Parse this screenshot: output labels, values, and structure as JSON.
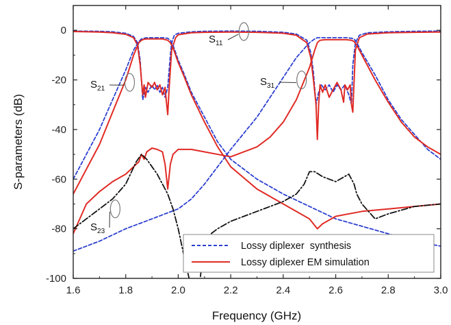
{
  "colors": {
    "synthesis": "#2b3fd1",
    "em_simulation": "#e02a24",
    "s23_curve": "#111111",
    "axis": "#222222",
    "annotation_ellipse": "#777777"
  },
  "chart_data": {
    "type": "line",
    "xlabel": "Frequency (GHz)",
    "ylabel": "S-parameters (dB)",
    "xlim": [
      1.6,
      3.0
    ],
    "ylim": [
      -100,
      10
    ],
    "xticks": [
      "1.6",
      "1.8",
      "2.0",
      "2.2",
      "2.4",
      "2.6",
      "2.8",
      "3.0"
    ],
    "yticks": [
      "0",
      "-20",
      "-40",
      "-60",
      "-80",
      "-100"
    ],
    "grid": false,
    "legend": {
      "placement": "bottom-right",
      "entries": [
        {
          "label": "Lossy diplexer  synthesis",
          "style": "dashed",
          "color": "#2b3fd1"
        },
        {
          "label": "Lossy diplexer EM simulation",
          "style": "solid",
          "color": "#e02a24"
        }
      ]
    },
    "annotations": [
      {
        "main": "S",
        "sub": "11",
        "at": [
          2.25,
          -0.5
        ]
      },
      {
        "main": "S",
        "sub": "21",
        "at": [
          1.815,
          -21
        ]
      },
      {
        "main": "S",
        "sub": "31",
        "at": [
          2.47,
          -20
        ]
      },
      {
        "main": "S",
        "sub": "23",
        "at": [
          1.76,
          -72
        ]
      }
    ],
    "series": [
      {
        "id": "s11-syn",
        "style": "dashed",
        "color": "#2b3fd1",
        "x": [
          1.6,
          1.7,
          1.75,
          1.8,
          1.83,
          1.845,
          1.855,
          1.865,
          1.875,
          1.885,
          1.9,
          1.91,
          1.92,
          1.93,
          1.94,
          1.95,
          1.96,
          1.97,
          1.975,
          1.985,
          2.0,
          2.05,
          2.1,
          2.2,
          2.3,
          2.4,
          2.45,
          2.49,
          2.505,
          2.515,
          2.525,
          2.535,
          2.545,
          2.56,
          2.575,
          2.59,
          2.605,
          2.62,
          2.635,
          2.65,
          2.66,
          2.665,
          2.675,
          2.69,
          2.72,
          2.8,
          2.9,
          3.0
        ],
        "y": [
          -0.3,
          -0.4,
          -0.6,
          -1.2,
          -2.5,
          -5,
          -12,
          -28,
          -23,
          -25,
          -22,
          -24,
          -22,
          -25,
          -23,
          -27,
          -23,
          -10,
          -5,
          -2,
          -1.2,
          -0.6,
          -0.4,
          -0.3,
          -0.4,
          -0.8,
          -1.5,
          -4,
          -9,
          -17,
          -30,
          -25,
          -22,
          -24,
          -22,
          -25,
          -22,
          -24,
          -22,
          -26,
          -30,
          -14,
          -5,
          -2,
          -1,
          -0.6,
          -0.4,
          -0.3
        ]
      },
      {
        "id": "s11-em",
        "style": "solid",
        "color": "#e02a24",
        "x": [
          1.6,
          1.7,
          1.75,
          1.8,
          1.83,
          1.845,
          1.855,
          1.865,
          1.87,
          1.875,
          1.885,
          1.9,
          1.91,
          1.92,
          1.93,
          1.94,
          1.95,
          1.955,
          1.96,
          1.965,
          1.975,
          1.99,
          2.0,
          2.05,
          2.1,
          2.2,
          2.3,
          2.4,
          2.45,
          2.49,
          2.505,
          2.515,
          2.525,
          2.53,
          2.535,
          2.54,
          2.55,
          2.56,
          2.575,
          2.59,
          2.605,
          2.62,
          2.63,
          2.635,
          2.645,
          2.655,
          2.66,
          2.665,
          2.675,
          2.69,
          2.72,
          2.8,
          2.9,
          3.0
        ],
        "y": [
          -0.5,
          -0.7,
          -1,
          -1.6,
          -3,
          -6,
          -14,
          -26,
          -22,
          -27,
          -21,
          -23,
          -21,
          -24,
          -22,
          -26,
          -23,
          -29,
          -34,
          -24,
          -8,
          -3,
          -1.8,
          -1,
          -0.8,
          -0.7,
          -0.8,
          -1.2,
          -2,
          -5,
          -11,
          -20,
          -30,
          -44,
          -30,
          -22,
          -25,
          -22,
          -27,
          -24,
          -21,
          -24,
          -29,
          -22,
          -24,
          -22,
          -30,
          -33,
          -8,
          -3,
          -1.5,
          -1,
          -0.8,
          -0.7
        ]
      },
      {
        "id": "s21-syn",
        "style": "dashed",
        "color": "#2b3fd1",
        "x": [
          1.6,
          1.65,
          1.7,
          1.75,
          1.8,
          1.83,
          1.85,
          1.86,
          1.87,
          1.88,
          1.9,
          1.92,
          1.94,
          1.96,
          1.97,
          1.98,
          1.99,
          2.0,
          2.02,
          2.05,
          2.1,
          2.15,
          2.2,
          2.3,
          2.4,
          2.5,
          2.6,
          2.7,
          2.8,
          2.9,
          3.0
        ],
        "y": [
          -60,
          -50,
          -40,
          -28,
          -16,
          -8,
          -4.5,
          -3.5,
          -3.2,
          -3,
          -3,
          -3,
          -3,
          -3.2,
          -4,
          -6,
          -9,
          -12,
          -17,
          -25,
          -35,
          -45,
          -52,
          -60,
          -66,
          -71,
          -76,
          -79,
          -82,
          -85,
          -87
        ]
      },
      {
        "id": "s21-em",
        "style": "solid",
        "color": "#e02a24",
        "x": [
          1.6,
          1.65,
          1.7,
          1.75,
          1.8,
          1.83,
          1.85,
          1.86,
          1.87,
          1.88,
          1.9,
          1.92,
          1.94,
          1.96,
          1.97,
          1.98,
          1.99,
          2.0,
          2.02,
          2.05,
          2.1,
          2.15,
          2.2,
          2.3,
          2.4,
          2.5,
          2.53,
          2.55,
          2.6,
          2.7,
          2.8,
          2.9,
          3.0
        ],
        "y": [
          -66,
          -56,
          -46,
          -33,
          -20,
          -10,
          -5,
          -4,
          -3.6,
          -3.5,
          -3.5,
          -3.5,
          -3.5,
          -4,
          -5,
          -7,
          -10,
          -13,
          -18,
          -26,
          -37,
          -47,
          -55,
          -64,
          -70,
          -76,
          -80,
          -78,
          -75,
          -73,
          -72,
          -71,
          -70
        ]
      },
      {
        "id": "s31-syn",
        "style": "dashed",
        "color": "#2b3fd1",
        "x": [
          1.6,
          1.7,
          1.8,
          1.9,
          1.95,
          2.0,
          2.05,
          2.1,
          2.2,
          2.3,
          2.35,
          2.4,
          2.45,
          2.5,
          2.52,
          2.53,
          2.54,
          2.56,
          2.6,
          2.64,
          2.66,
          2.67,
          2.68,
          2.7,
          2.75,
          2.8,
          2.85,
          2.9,
          2.95,
          3.0
        ],
        "y": [
          -89,
          -85,
          -80,
          -76,
          -74,
          -72,
          -68,
          -62,
          -48,
          -35,
          -27,
          -19,
          -11,
          -5,
          -3.5,
          -3,
          -3,
          -3,
          -3,
          -3,
          -3.2,
          -3.5,
          -5,
          -9,
          -18,
          -28,
          -36,
          -42,
          -48,
          -52
        ]
      },
      {
        "id": "s31-em",
        "style": "solid",
        "color": "#e02a24",
        "x": [
          1.6,
          1.65,
          1.7,
          1.75,
          1.8,
          1.85,
          1.86,
          1.87,
          1.88,
          1.9,
          1.92,
          1.94,
          1.95,
          1.96,
          1.97,
          1.98,
          2.0,
          2.05,
          2.1,
          2.2,
          2.3,
          2.35,
          2.4,
          2.45,
          2.5,
          2.52,
          2.53,
          2.54,
          2.56,
          2.6,
          2.64,
          2.66,
          2.67,
          2.68,
          2.7,
          2.75,
          2.8,
          2.85,
          2.9,
          2.95,
          3.0
        ],
        "y": [
          -82,
          -70,
          -65,
          -61,
          -58,
          -53,
          -50,
          -52,
          -49,
          -47.5,
          -48,
          -49,
          -54,
          -64,
          -54,
          -50,
          -48,
          -48,
          -49,
          -51,
          -47,
          -43,
          -37,
          -28,
          -15,
          -8,
          -5,
          -4,
          -3.8,
          -3.8,
          -3.8,
          -4,
          -4.5,
          -6,
          -10,
          -20,
          -29,
          -37,
          -43,
          -47,
          -50
        ]
      },
      {
        "id": "s23-em",
        "style": "dashdot",
        "color": "#111111",
        "x": [
          1.6,
          1.65,
          1.7,
          1.75,
          1.8,
          1.84,
          1.86,
          1.88,
          1.9,
          1.92,
          1.94,
          1.96,
          1.98,
          2.0,
          2.02,
          2.05,
          2.08,
          2.1,
          2.15,
          2.2,
          2.25,
          2.3,
          2.35,
          2.4,
          2.45,
          2.48,
          2.5,
          2.52,
          2.55,
          2.6,
          2.65,
          2.67,
          2.68,
          2.7,
          2.75,
          2.8,
          2.9,
          3.0
        ],
        "y": [
          -80,
          -76,
          -72,
          -68,
          -62,
          -53,
          -50,
          -52,
          -55,
          -58,
          -62,
          -66,
          -72,
          -80,
          -90,
          -104,
          -104,
          -84,
          -80,
          -77,
          -75,
          -73,
          -71,
          -69,
          -66,
          -62,
          -57,
          -57,
          -59,
          -61,
          -58,
          -62,
          -66,
          -70,
          -76,
          -74,
          -71,
          -70
        ]
      }
    ]
  }
}
